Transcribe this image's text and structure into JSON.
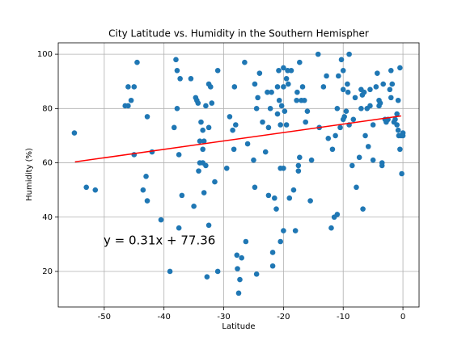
{
  "chart_data": {
    "type": "scatter",
    "title": "City Latitude vs. Humidity in the Southern Hemispher",
    "x_label": "Latitude",
    "y_label": "Humidity (%)",
    "color": "#1f77b4",
    "grid": true,
    "xlim": [
      -57.7,
      2.7
    ],
    "ylim": [
      6.9,
      104.2
    ],
    "xticks": [
      -50,
      -40,
      -30,
      -20,
      -10,
      0
    ],
    "yticks": [
      20,
      40,
      60,
      80,
      100
    ],
    "x": [
      -55,
      -53,
      -51.5,
      -46.5,
      -46,
      -46,
      -45.5,
      -45,
      -45,
      -44.5,
      -43.5,
      -43,
      -42.8,
      -42.8,
      -42,
      -40.5,
      -39,
      -38.3,
      -38,
      -37.8,
      -37.8,
      -37.5,
      -37.5,
      -37.3,
      -37,
      -35.5,
      -35,
      -34.7,
      -34.5,
      -34.3,
      -34.2,
      -34,
      -34,
      -33.8,
      -33.5,
      -33.5,
      -33.5,
      -33.3,
      -33,
      -33.3,
      -33,
      -32.8,
      -32.5,
      -32.5,
      -32.5,
      -32.2,
      -32,
      -31.5,
      -31,
      -31,
      -29.5,
      -29,
      -28.5,
      -28.3,
      -28.2,
      -28,
      -27.8,
      -27.7,
      -27.5,
      -27.3,
      -27,
      -26.5,
      -26.3,
      -26,
      -25,
      -24.8,
      -24.8,
      -24.5,
      -24.5,
      -24.3,
      -24,
      -23.5,
      -23,
      -22.7,
      -22.5,
      -22.5,
      -22.2,
      -22,
      -21.8,
      -21.8,
      -21.5,
      -21.2,
      -21,
      -21,
      -20.8,
      -20.7,
      -20.5,
      -20.5,
      -20.5,
      -20.3,
      -20,
      -20,
      -20,
      -20,
      -19.8,
      -19.5,
      -19.5,
      -19.3,
      -19.2,
      -19,
      -18.7,
      -18.3,
      -18,
      -17.8,
      -17.7,
      -17.5,
      -17.5,
      -17.3,
      -17.3,
      -17,
      -16.8,
      -16.5,
      -16.3,
      -16,
      -15.5,
      -15.3,
      -14.2,
      -14,
      -13.3,
      -12.8,
      -12.5,
      -12,
      -11.8,
      -11.5,
      -11.3,
      -11,
      -11,
      -10.8,
      -10.5,
      -10.3,
      -10,
      -10,
      -10,
      -9.8,
      -9.5,
      -9.3,
      -9.2,
      -9,
      -9,
      -8.5,
      -8.3,
      -8,
      -7.8,
      -7.3,
      -7,
      -7,
      -6.8,
      -6.7,
      -6.5,
      -6.3,
      -6,
      -5.8,
      -5.5,
      -5.5,
      -5,
      -5,
      -4.5,
      -4.3,
      -4,
      -4,
      -3.8,
      -3.5,
      -3.5,
      -3.3,
      -3,
      -2.8,
      -2.5,
      -2.2,
      -2,
      -2,
      -1.8,
      -1.5,
      -1.3,
      -1,
      -1,
      -0.8,
      -0.8,
      -0.7,
      -0.5,
      -0.5,
      -0.3,
      -0.2,
      0,
      0
    ],
    "values": [
      71,
      51,
      50,
      81,
      88,
      81,
      83,
      88,
      63,
      97,
      50,
      55,
      46,
      77,
      64,
      39,
      20,
      73,
      98,
      94,
      80,
      36,
      63,
      91,
      48,
      91,
      44,
      84,
      83,
      82,
      57,
      60,
      68,
      75,
      65,
      72,
      60,
      68,
      81,
      49,
      59,
      18,
      73,
      89,
      37,
      88,
      82,
      53,
      94,
      20,
      58,
      77,
      72,
      65,
      88,
      74,
      26,
      21,
      12,
      17,
      25,
      97,
      31,
      67,
      61,
      51,
      89,
      19,
      80,
      84,
      93,
      75,
      64,
      86,
      73,
      48,
      80,
      86,
      22,
      27,
      47,
      43,
      88,
      78,
      94,
      83,
      74,
      58,
      31,
      81,
      95,
      88,
      35,
      58,
      79,
      91,
      74,
      94,
      89,
      47,
      94,
      50,
      35,
      83,
      86,
      59,
      57,
      62,
      97,
      83,
      88,
      83,
      75,
      79,
      46,
      61,
      100,
      73,
      88,
      92,
      69,
      36,
      65,
      40,
      70,
      80,
      41,
      92,
      73,
      98,
      87,
      76,
      94,
      77,
      79,
      89,
      86,
      100,
      74,
      59,
      76,
      84,
      51,
      62,
      87,
      80,
      85,
      43,
      86,
      70,
      80,
      66,
      87,
      81,
      74,
      61,
      88,
      93,
      81,
      83,
      82,
      60,
      59,
      89,
      76,
      75,
      76,
      87,
      84,
      94,
      89,
      75,
      76,
      74,
      78,
      83,
      72,
      70,
      95,
      65,
      70,
      56,
      71,
      70
    ],
    "regression": {
      "x": [
        -54.9,
        -0.3
      ],
      "y": [
        60.34,
        77.27
      ],
      "color": "red"
    },
    "annotation": {
      "text": "y = 0.31x + 77.36",
      "color": "red"
    }
  }
}
